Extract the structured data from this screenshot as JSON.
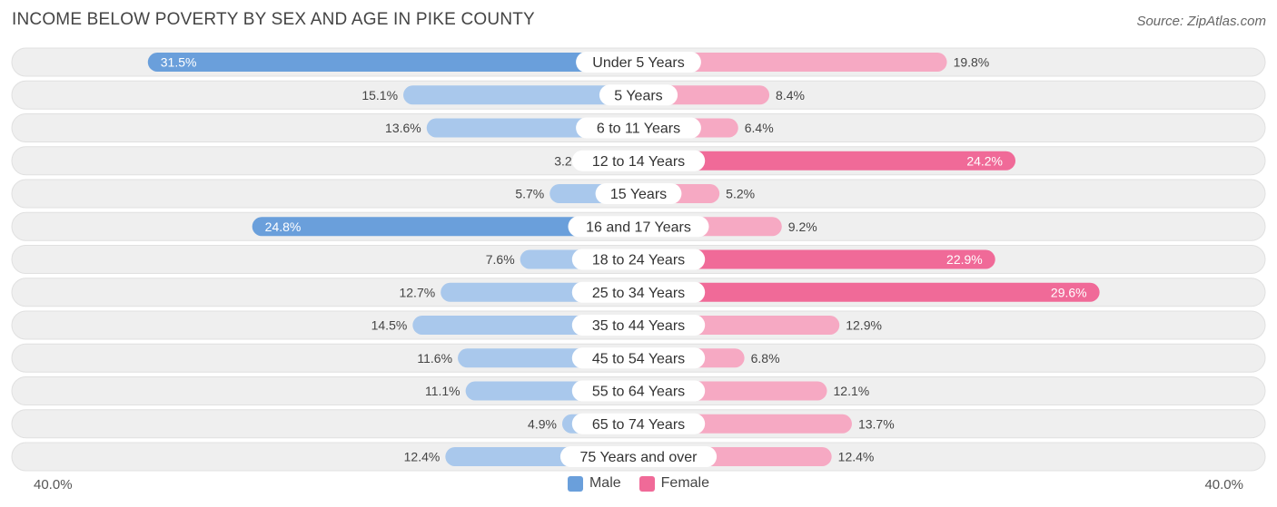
{
  "chart_data": {
    "type": "bar",
    "orientation": "horizontal-diverging",
    "title": "INCOME BELOW POVERTY BY SEX AND AGE IN PIKE COUNTY",
    "source": "Source: ZipAtlas.com",
    "categories": [
      "Under 5 Years",
      "5 Years",
      "6 to 11 Years",
      "12 to 14 Years",
      "15 Years",
      "16 and 17 Years",
      "18 to 24 Years",
      "25 to 34 Years",
      "35 to 44 Years",
      "45 to 54 Years",
      "55 to 64 Years",
      "65 to 74 Years",
      "75 Years and over"
    ],
    "series": [
      {
        "name": "Male",
        "values": [
          31.5,
          15.1,
          13.6,
          3.2,
          5.7,
          24.8,
          7.6,
          12.7,
          14.5,
          11.6,
          11.1,
          4.9,
          12.4
        ]
      },
      {
        "name": "Female",
        "values": [
          19.8,
          8.4,
          6.4,
          24.2,
          5.2,
          9.2,
          22.9,
          29.6,
          12.9,
          6.8,
          12.1,
          13.7,
          12.4
        ]
      }
    ],
    "xlim": [
      0,
      40.0
    ],
    "axis_min_label": "40.0%",
    "axis_max_label": "40.0%",
    "legend": [
      "Male",
      "Female"
    ],
    "legend_position": "bottom-center",
    "colors": {
      "male_strong": "#6a9fdb",
      "male_light": "#a9c8ec",
      "female_strong": "#f06a98",
      "female_light": "#f6a9c3",
      "row_bg": "#efefef",
      "row_border": "#e0e0e0"
    }
  }
}
